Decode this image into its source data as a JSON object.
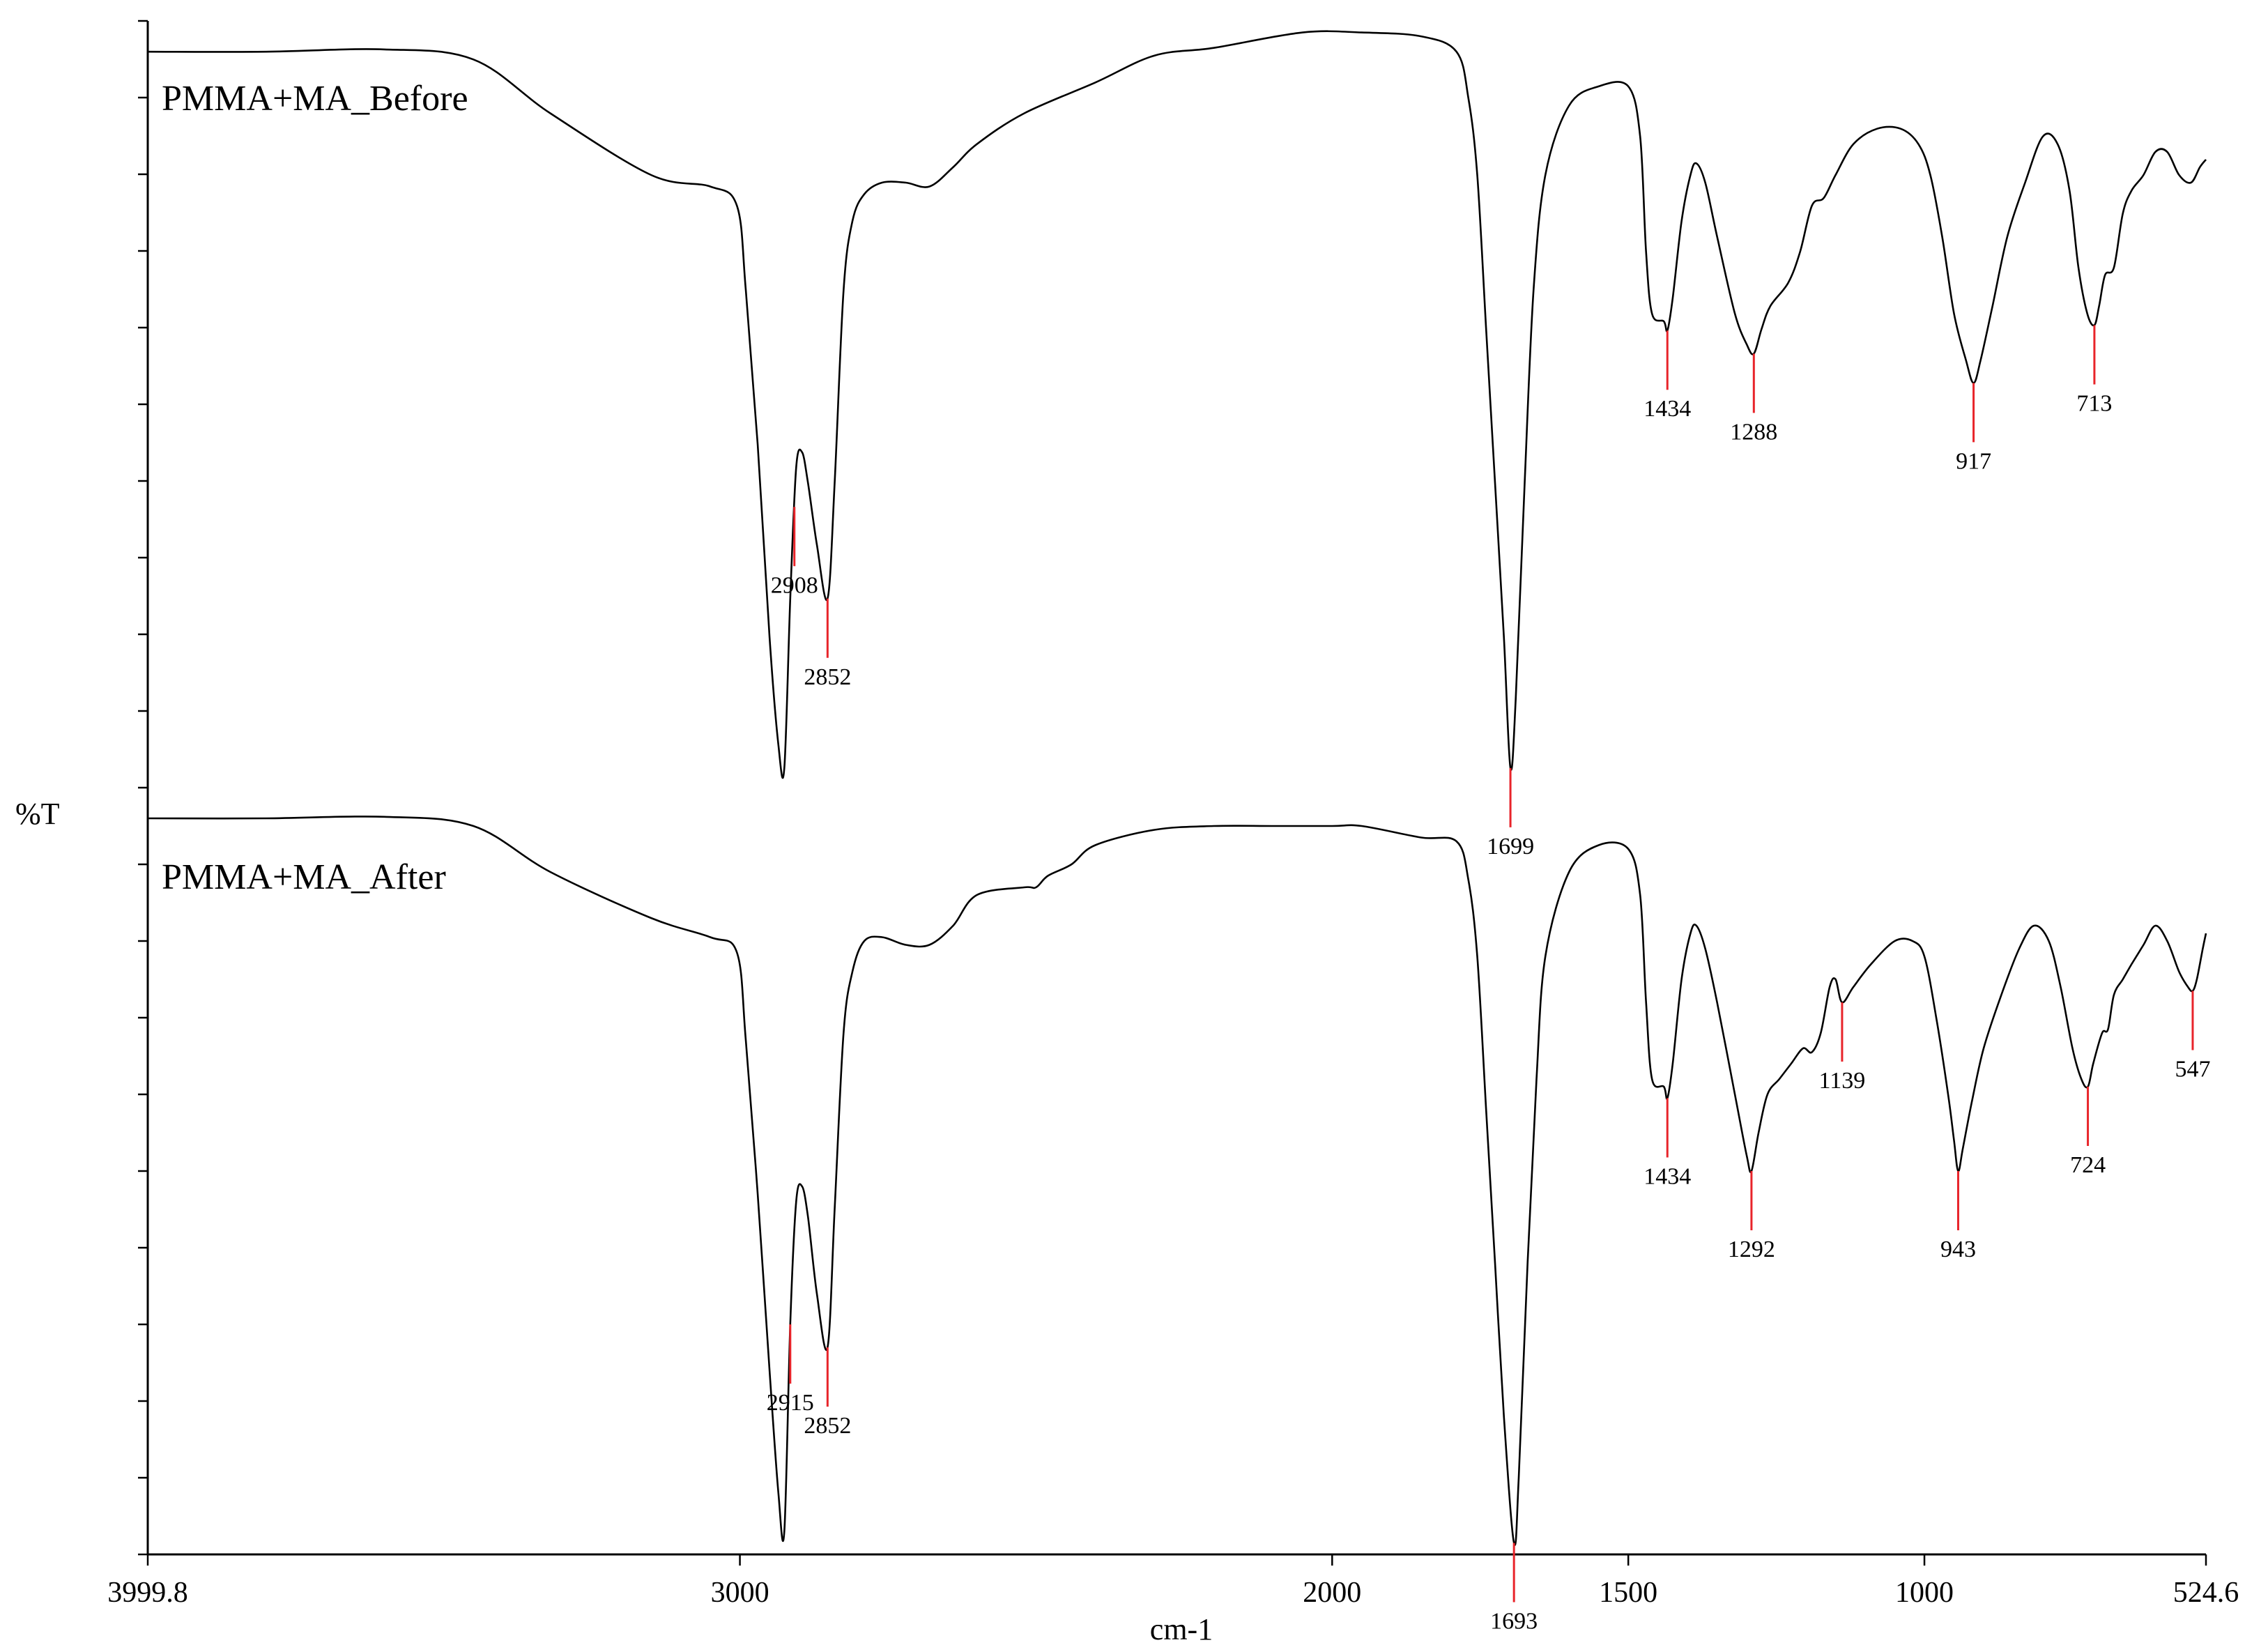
{
  "chart_data": {
    "type": "line",
    "xlabel": "cm-1",
    "ylabel": "%T",
    "xlim": [
      3999.8,
      524.6
    ],
    "x_ticks": [
      {
        "value": 3999.8,
        "label": "3999.8"
      },
      {
        "value": 3000,
        "label": "3000"
      },
      {
        "value": 2000,
        "label": "2000"
      },
      {
        "value": 1500,
        "label": "1500"
      },
      {
        "value": 1000,
        "label": "1000"
      },
      {
        "value": 524.6,
        "label": "524.6"
      }
    ],
    "y_tick_count": 21,
    "grid": false,
    "line_color": "#000000",
    "peak_marker_color": "#e8242a",
    "series": [
      {
        "name": "PMMA+MA_Before",
        "points": [
          [
            3999.8,
            96
          ],
          [
            3800,
            96
          ],
          [
            3600,
            96.3
          ],
          [
            3450,
            95
          ],
          [
            3320,
            88
          ],
          [
            3150,
            80
          ],
          [
            3050,
            78.5
          ],
          [
            3005,
            76
          ],
          [
            2990,
            65
          ],
          [
            2970,
            45
          ],
          [
            2950,
            20
          ],
          [
            2935,
            6
          ],
          [
            2925,
            3
          ],
          [
            2915,
            25
          ],
          [
            2905,
            42
          ],
          [
            2895,
            44
          ],
          [
            2885,
            40
          ],
          [
            2870,
            32
          ],
          [
            2852,
            25
          ],
          [
            2840,
            40
          ],
          [
            2825,
            65
          ],
          [
            2810,
            74
          ],
          [
            2790,
            77.5
          ],
          [
            2760,
            79
          ],
          [
            2720,
            79
          ],
          [
            2680,
            78.5
          ],
          [
            2640,
            81
          ],
          [
            2600,
            84
          ],
          [
            2520,
            88
          ],
          [
            2400,
            92
          ],
          [
            2300,
            95.5
          ],
          [
            2200,
            96.5
          ],
          [
            2050,
            98.5
          ],
          [
            1950,
            98.5
          ],
          [
            1850,
            98
          ],
          [
            1790,
            96
          ],
          [
            1770,
            90
          ],
          [
            1755,
            80
          ],
          [
            1740,
            60
          ],
          [
            1725,
            40
          ],
          [
            1710,
            20
          ],
          [
            1699,
            3
          ],
          [
            1690,
            12
          ],
          [
            1675,
            40
          ],
          [
            1660,
            65
          ],
          [
            1640,
            80
          ],
          [
            1600,
            89
          ],
          [
            1550,
            91.5
          ],
          [
            1500,
            91.5
          ],
          [
            1480,
            85
          ],
          [
            1470,
            70
          ],
          [
            1460,
            62
          ],
          [
            1440,
            61
          ],
          [
            1434,
            59.8
          ],
          [
            1425,
            64
          ],
          [
            1410,
            74
          ],
          [
            1395,
            80
          ],
          [
            1385,
            81.5
          ],
          [
            1370,
            79
          ],
          [
            1350,
            72
          ],
          [
            1320,
            62
          ],
          [
            1300,
            58
          ],
          [
            1288,
            56.8
          ],
          [
            1275,
            60
          ],
          [
            1260,
            63
          ],
          [
            1230,
            66
          ],
          [
            1210,
            70
          ],
          [
            1190,
            76
          ],
          [
            1170,
            77
          ],
          [
            1150,
            80
          ],
          [
            1120,
            84
          ],
          [
            1080,
            86
          ],
          [
            1040,
            86
          ],
          [
            1010,
            84
          ],
          [
            990,
            80
          ],
          [
            970,
            72
          ],
          [
            950,
            62
          ],
          [
            930,
            56
          ],
          [
            917,
            53
          ],
          [
            905,
            56
          ],
          [
            885,
            63
          ],
          [
            860,
            72
          ],
          [
            830,
            79
          ],
          [
            800,
            85
          ],
          [
            775,
            84
          ],
          [
            755,
            78
          ],
          [
            740,
            68
          ],
          [
            725,
            62
          ],
          [
            713,
            60.5
          ],
          [
            705,
            63
          ],
          [
            695,
            67
          ],
          [
            680,
            68
          ],
          [
            665,
            75
          ],
          [
            650,
            78
          ],
          [
            630,
            80
          ],
          [
            610,
            83
          ],
          [
            590,
            83
          ],
          [
            570,
            80
          ],
          [
            550,
            79
          ],
          [
            535,
            81
          ],
          [
            524.6,
            82
          ]
        ],
        "peaks": [
          {
            "x": 2908,
            "label": "2908"
          },
          {
            "x": 2852,
            "label": "2852"
          },
          {
            "x": 1699,
            "label": "1699"
          },
          {
            "x": 1434,
            "label": "1434"
          },
          {
            "x": 1288,
            "label": "1288"
          },
          {
            "x": 917,
            "label": "917"
          },
          {
            "x": 713,
            "label": "713"
          }
        ]
      },
      {
        "name": "PMMA+MA_After",
        "points": [
          [
            3999.8,
            96
          ],
          [
            3800,
            96
          ],
          [
            3600,
            96.2
          ],
          [
            3450,
            95
          ],
          [
            3320,
            89
          ],
          [
            3150,
            83
          ],
          [
            3050,
            80.5
          ],
          [
            3005,
            78.5
          ],
          [
            2990,
            67
          ],
          [
            2970,
            47
          ],
          [
            2950,
            24
          ],
          [
            2935,
            8
          ],
          [
            2925,
            3
          ],
          [
            2915,
            30
          ],
          [
            2905,
            46
          ],
          [
            2895,
            48
          ],
          [
            2885,
            44
          ],
          [
            2870,
            34
          ],
          [
            2852,
            27
          ],
          [
            2840,
            45
          ],
          [
            2825,
            68
          ],
          [
            2810,
            76
          ],
          [
            2790,
            80
          ],
          [
            2760,
            80.5
          ],
          [
            2720,
            79.5
          ],
          [
            2680,
            79.5
          ],
          [
            2640,
            82
          ],
          [
            2600,
            86
          ],
          [
            2520,
            87
          ],
          [
            2500,
            87
          ],
          [
            2480,
            88.5
          ],
          [
            2440,
            90
          ],
          [
            2400,
            92.5
          ],
          [
            2300,
            94.5
          ],
          [
            2200,
            95
          ],
          [
            2100,
            95
          ],
          [
            2000,
            95
          ],
          [
            1950,
            95
          ],
          [
            1850,
            93.5
          ],
          [
            1790,
            93
          ],
          [
            1770,
            88
          ],
          [
            1755,
            78
          ],
          [
            1740,
            58
          ],
          [
            1725,
            38
          ],
          [
            1710,
            18
          ],
          [
            1693,
            1.5
          ],
          [
            1685,
            10
          ],
          [
            1670,
            38
          ],
          [
            1655,
            62
          ],
          [
            1640,
            78
          ],
          [
            1600,
            89
          ],
          [
            1550,
            92.5
          ],
          [
            1500,
            92
          ],
          [
            1480,
            86
          ],
          [
            1470,
            72
          ],
          [
            1460,
            62
          ],
          [
            1440,
            61
          ],
          [
            1434,
            59.5
          ],
          [
            1425,
            64
          ],
          [
            1410,
            75
          ],
          [
            1395,
            81
          ],
          [
            1385,
            82
          ],
          [
            1370,
            79
          ],
          [
            1350,
            72
          ],
          [
            1320,
            60
          ],
          [
            1300,
            52
          ],
          [
            1292,
            50
          ],
          [
            1280,
            55
          ],
          [
            1265,
            60
          ],
          [
            1245,
            62
          ],
          [
            1225,
            64
          ],
          [
            1205,
            66
          ],
          [
            1190,
            65.5
          ],
          [
            1175,
            68
          ],
          [
            1160,
            74
          ],
          [
            1150,
            75
          ],
          [
            1139,
            72
          ],
          [
            1120,
            74
          ],
          [
            1090,
            77
          ],
          [
            1050,
            80
          ],
          [
            1020,
            80
          ],
          [
            1000,
            78
          ],
          [
            980,
            70
          ],
          [
            960,
            60
          ],
          [
            950,
            54
          ],
          [
            943,
            50
          ],
          [
            935,
            53
          ],
          [
            920,
            59
          ],
          [
            900,
            66
          ],
          [
            870,
            73
          ],
          [
            840,
            79
          ],
          [
            815,
            82
          ],
          [
            790,
            80
          ],
          [
            770,
            74
          ],
          [
            750,
            66
          ],
          [
            735,
            62
          ],
          [
            724,
            61
          ],
          [
            715,
            64
          ],
          [
            700,
            68
          ],
          [
            690,
            68.5
          ],
          [
            680,
            73
          ],
          [
            665,
            75
          ],
          [
            650,
            77
          ],
          [
            630,
            79.5
          ],
          [
            610,
            82
          ],
          [
            590,
            80
          ],
          [
            570,
            76
          ],
          [
            555,
            74
          ],
          [
            547,
            73.5
          ],
          [
            540,
            75
          ],
          [
            530,
            79
          ],
          [
            524.6,
            81
          ]
        ],
        "peaks": [
          {
            "x": 2915,
            "label": "2915"
          },
          {
            "x": 2852,
            "label": "2852"
          },
          {
            "x": 1693,
            "label": "1693"
          },
          {
            "x": 1434,
            "label": "1434"
          },
          {
            "x": 1292,
            "label": "1292"
          },
          {
            "x": 1139,
            "label": "1139"
          },
          {
            "x": 943,
            "label": "943"
          },
          {
            "x": 724,
            "label": "724"
          },
          {
            "x": 547,
            "label": "547"
          }
        ]
      }
    ]
  }
}
